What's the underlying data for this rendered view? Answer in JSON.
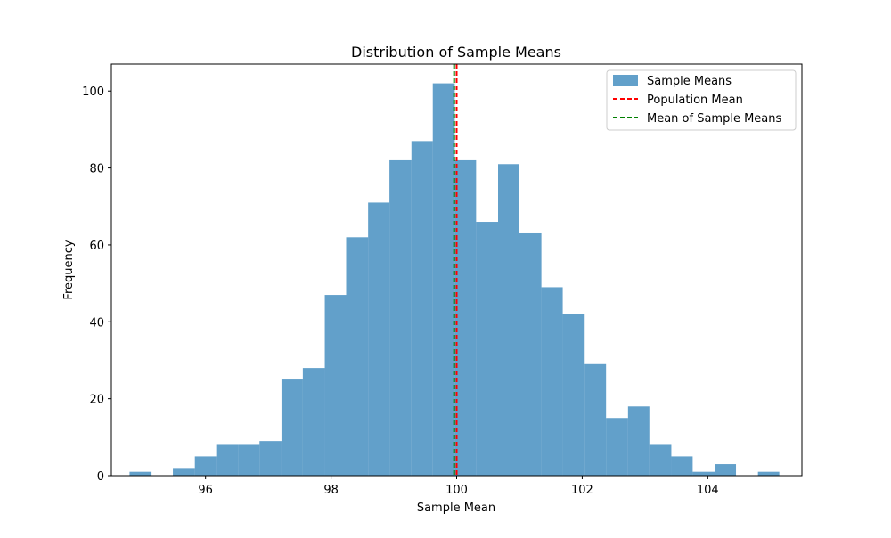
{
  "chart_data": {
    "type": "bar",
    "title": "Distribution of Sample Means",
    "xlabel": "Sample Mean",
    "ylabel": "Frequency",
    "xlim": [
      94.5,
      105.5
    ],
    "ylim": [
      0,
      107
    ],
    "x_ticks": [
      96,
      98,
      100,
      102,
      104
    ],
    "y_ticks": [
      0,
      20,
      40,
      60,
      80,
      100
    ],
    "grid": false,
    "legend_position": "top-right",
    "bar_color": "#1f77b4",
    "bar_alpha": 0.7,
    "bins": [
      {
        "start": 94.79,
        "end": 95.14,
        "count": 1
      },
      {
        "start": 95.14,
        "end": 95.48,
        "count": 0
      },
      {
        "start": 95.48,
        "end": 95.83,
        "count": 2
      },
      {
        "start": 95.83,
        "end": 96.17,
        "count": 5
      },
      {
        "start": 96.17,
        "end": 96.52,
        "count": 8
      },
      {
        "start": 96.52,
        "end": 96.86,
        "count": 8
      },
      {
        "start": 96.86,
        "end": 97.21,
        "count": 9
      },
      {
        "start": 97.21,
        "end": 97.55,
        "count": 25
      },
      {
        "start": 97.55,
        "end": 97.9,
        "count": 28
      },
      {
        "start": 97.9,
        "end": 98.24,
        "count": 47
      },
      {
        "start": 98.24,
        "end": 98.59,
        "count": 62
      },
      {
        "start": 98.59,
        "end": 98.93,
        "count": 71
      },
      {
        "start": 98.93,
        "end": 99.28,
        "count": 82
      },
      {
        "start": 99.28,
        "end": 99.62,
        "count": 87
      },
      {
        "start": 99.62,
        "end": 99.97,
        "count": 102
      },
      {
        "start": 99.97,
        "end": 100.31,
        "count": 82
      },
      {
        "start": 100.31,
        "end": 100.66,
        "count": 66
      },
      {
        "start": 100.66,
        "end": 101.0,
        "count": 81
      },
      {
        "start": 101.0,
        "end": 101.35,
        "count": 63
      },
      {
        "start": 101.35,
        "end": 101.69,
        "count": 49
      },
      {
        "start": 101.69,
        "end": 102.04,
        "count": 42
      },
      {
        "start": 102.04,
        "end": 102.38,
        "count": 29
      },
      {
        "start": 102.38,
        "end": 102.73,
        "count": 15
      },
      {
        "start": 102.73,
        "end": 103.07,
        "count": 18
      },
      {
        "start": 103.07,
        "end": 103.42,
        "count": 8
      },
      {
        "start": 103.42,
        "end": 103.76,
        "count": 5
      },
      {
        "start": 103.76,
        "end": 104.11,
        "count": 1
      },
      {
        "start": 104.11,
        "end": 104.45,
        "count": 3
      },
      {
        "start": 104.45,
        "end": 104.8,
        "count": 0
      },
      {
        "start": 104.8,
        "end": 105.14,
        "count": 1
      }
    ],
    "series": [
      {
        "name": "Sample Means",
        "kind": "histogram",
        "color": "#1f77b4"
      },
      {
        "name": "Population Mean",
        "kind": "vline",
        "x": 100.0,
        "color": "#ff0000",
        "linestyle": "dashed"
      },
      {
        "name": "Mean of Sample Means",
        "kind": "vline",
        "x": 99.96,
        "color": "#008000",
        "linestyle": "dashed"
      }
    ]
  }
}
